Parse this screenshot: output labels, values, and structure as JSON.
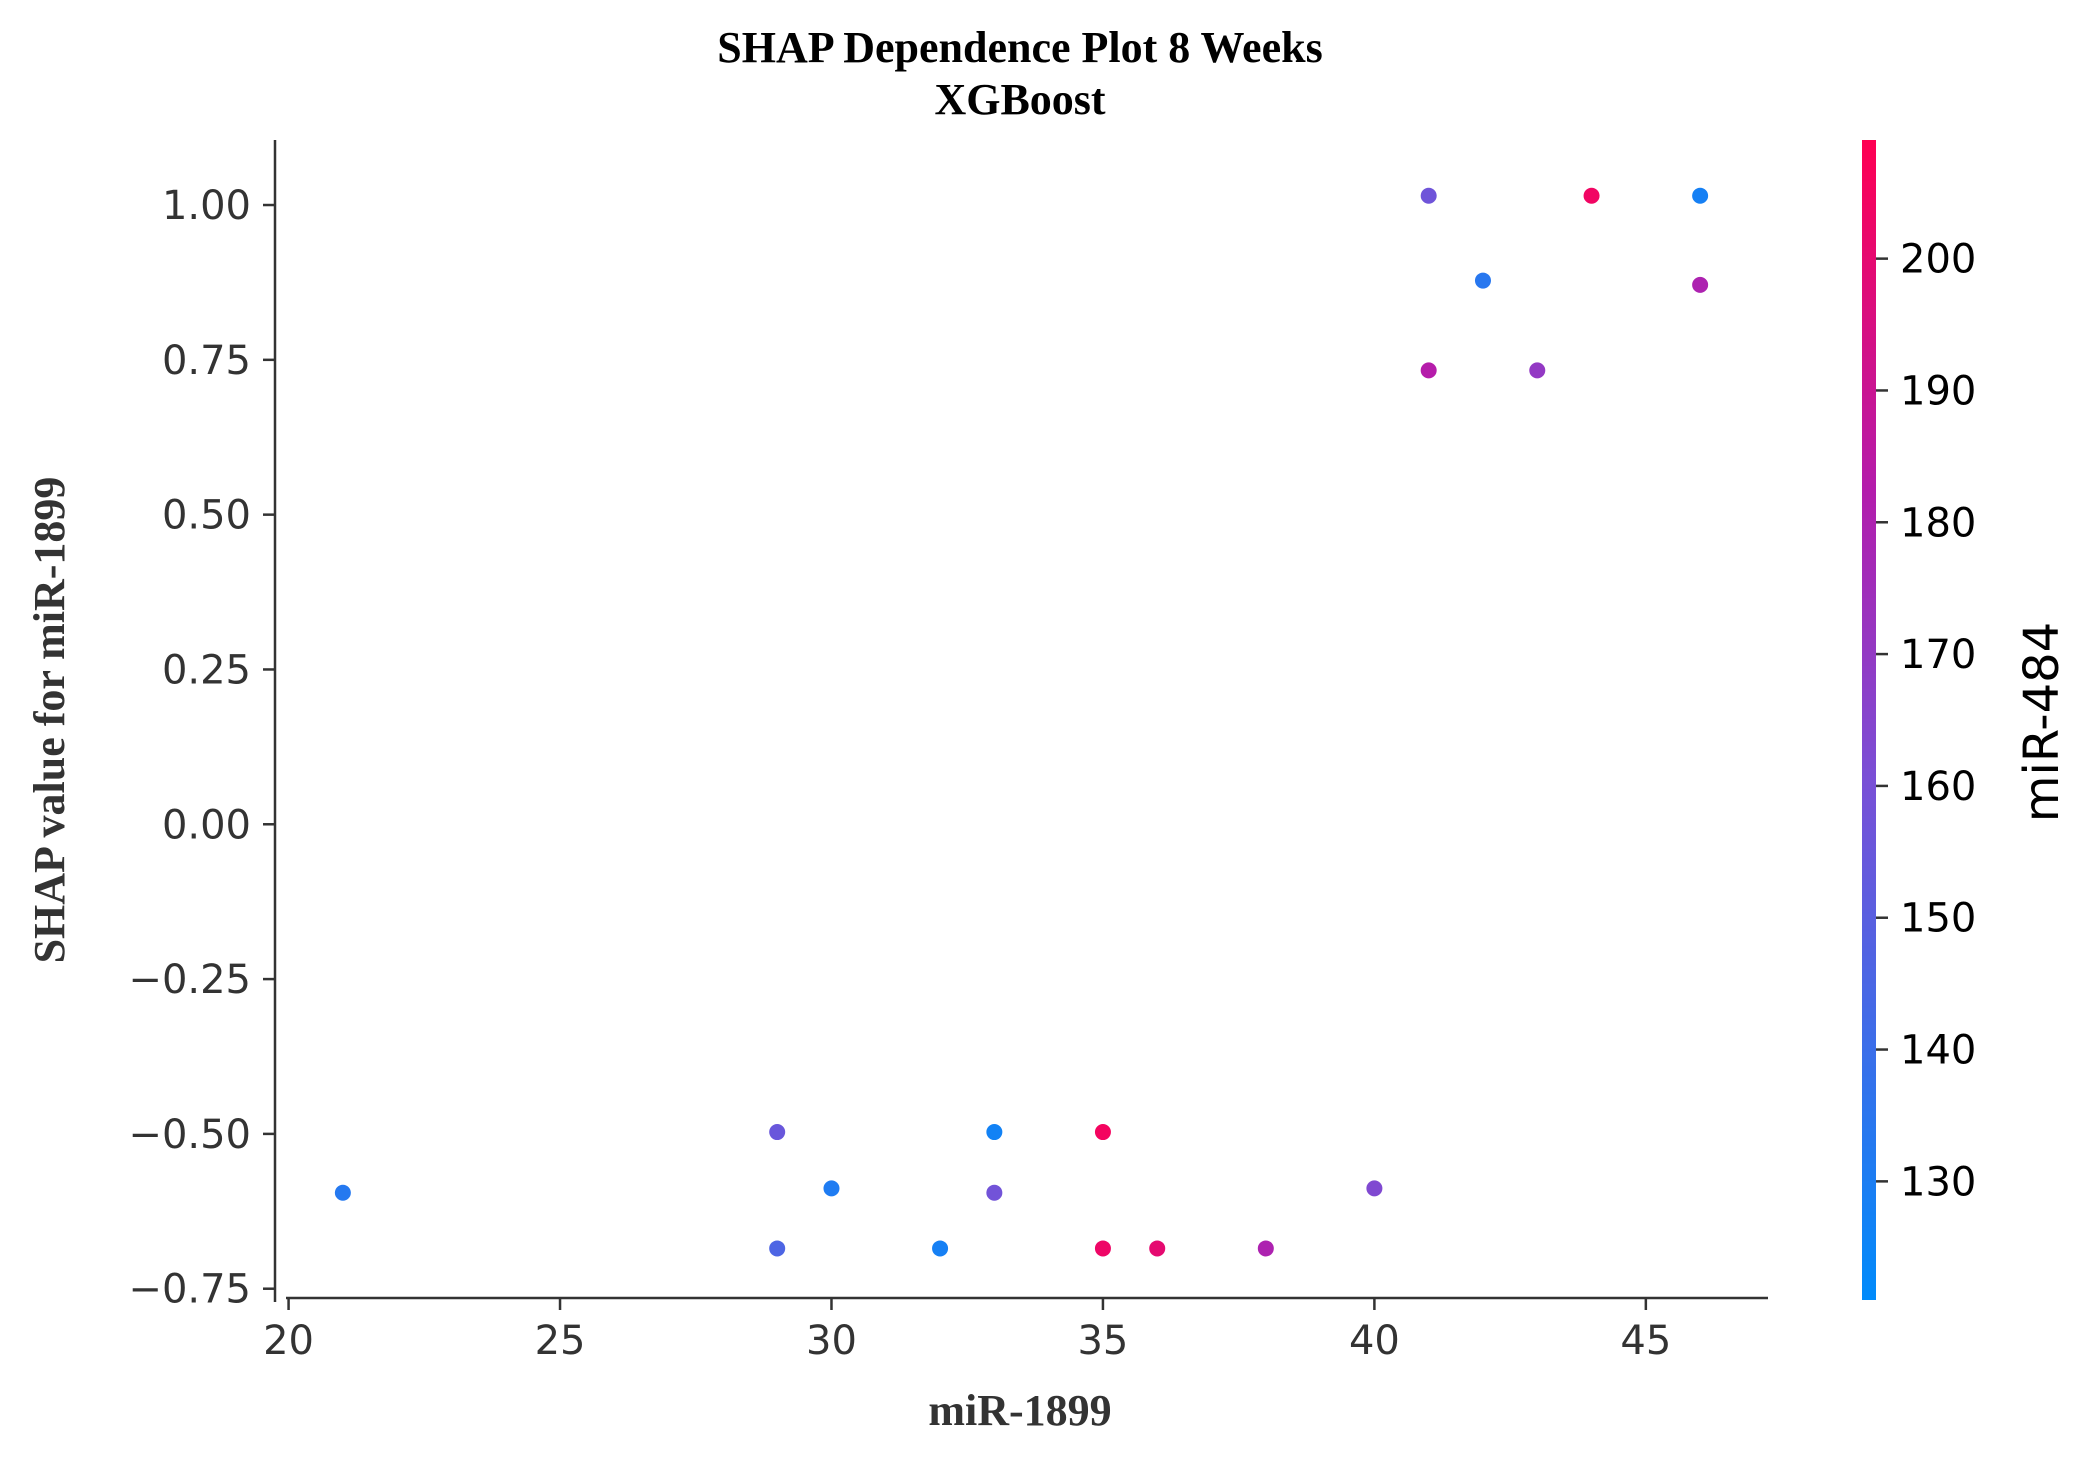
{
  "chart_data": {
    "type": "scatter",
    "title": [
      "SHAP Dependence Plot 8 Weeks",
      "XGBoost"
    ],
    "xlabel": "miR-1899",
    "ylabel": "SHAP value for miR-1899",
    "xlim": [
      19.75,
      47.25
    ],
    "ylim": [
      -0.765,
      1.105
    ],
    "xticks": [
      20,
      25,
      30,
      35,
      40,
      45
    ],
    "xtick_labels": [
      "20",
      "25",
      "30",
      "35",
      "40",
      "45"
    ],
    "yticks": [
      1.0,
      0.75,
      0.5,
      0.25,
      0.0,
      -0.25,
      -0.5,
      -0.75
    ],
    "ytick_labels": [
      "1.00",
      "0.75",
      "0.50",
      "0.25",
      "0.00",
      "−0.25",
      "−0.50",
      "−0.75"
    ],
    "grid": false,
    "colorbar": {
      "label": "miR-484",
      "range": [
        121,
        209
      ],
      "ticks": [
        130,
        140,
        150,
        160,
        170,
        180,
        190,
        200
      ],
      "tick_labels": [
        "130",
        "140",
        "150",
        "160",
        "170",
        "180",
        "190",
        "200"
      ],
      "colormap": [
        "#008bfb",
        "#ff0052"
      ]
    },
    "points": [
      {
        "x": 21,
        "y": -0.595,
        "c": 133
      },
      {
        "x": 29,
        "y": -0.497,
        "c": 155
      },
      {
        "x": 29,
        "y": -0.685,
        "c": 146
      },
      {
        "x": 30,
        "y": -0.588,
        "c": 131
      },
      {
        "x": 32,
        "y": -0.685,
        "c": 128
      },
      {
        "x": 33,
        "y": -0.497,
        "c": 127
      },
      {
        "x": 33,
        "y": -0.595,
        "c": 158
      },
      {
        "x": 35,
        "y": -0.497,
        "c": 205
      },
      {
        "x": 35,
        "y": -0.685,
        "c": 203
      },
      {
        "x": 36,
        "y": -0.685,
        "c": 200
      },
      {
        "x": 38,
        "y": -0.685,
        "c": 180
      },
      {
        "x": 40,
        "y": -0.588,
        "c": 163
      },
      {
        "x": 41,
        "y": 1.015,
        "c": 157
      },
      {
        "x": 41,
        "y": 0.733,
        "c": 183
      },
      {
        "x": 42,
        "y": 0.878,
        "c": 134
      },
      {
        "x": 43,
        "y": 0.733,
        "c": 170
      },
      {
        "x": 44,
        "y": 1.015,
        "c": 204
      },
      {
        "x": 46,
        "y": 1.015,
        "c": 128
      },
      {
        "x": 46,
        "y": 0.871,
        "c": 180
      }
    ]
  }
}
